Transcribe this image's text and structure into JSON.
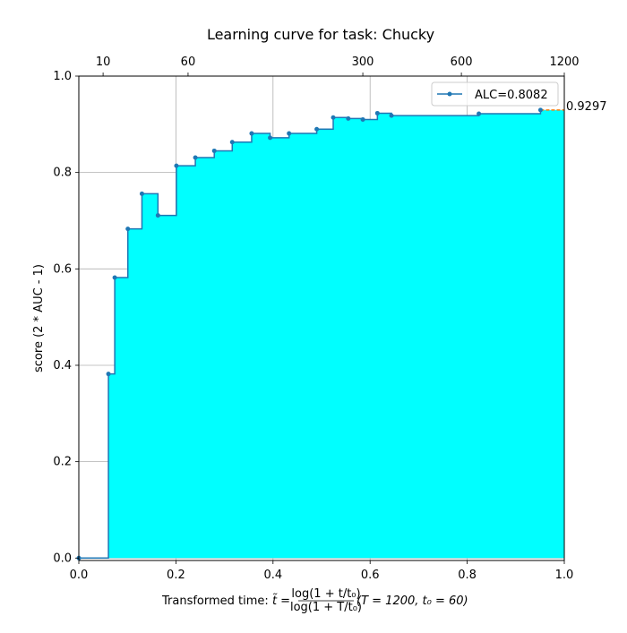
{
  "chart_data": {
    "type": "area",
    "title": "Learning curve for task: Chucky",
    "ylabel": "score (2 * AUC - 1)",
    "xlabel": {
      "prefix": "Transformed time: ",
      "tvar": "t̃",
      "eq": " = ",
      "num": "log(1 + t/t₀)",
      "den": "log(1 + T/t₀)",
      "suffix": "  (T = 1200,  t₀ = 60)"
    },
    "xlim": [
      0,
      1
    ],
    "ylim": [
      -0.005,
      1.0
    ],
    "x_ticks": [
      0.0,
      0.2,
      0.4,
      0.6,
      0.8,
      1.0
    ],
    "x_tick_labels": [
      "0.0",
      "0.2",
      "0.4",
      "0.6",
      "0.8",
      "1.0"
    ],
    "y_ticks": [
      0.0,
      0.2,
      0.4,
      0.6,
      0.8,
      1.0
    ],
    "y_tick_labels": [
      "0.0",
      "0.2",
      "0.4",
      "0.6",
      "0.8",
      "1.0"
    ],
    "top_ticks": [
      0.05,
      0.225,
      0.585,
      0.788,
      1.0
    ],
    "top_tick_labels": [
      "10",
      "60",
      "300",
      "600",
      "1200"
    ],
    "grid": true,
    "legend": {
      "placement": "top-right",
      "label": "ALC=0.8082"
    },
    "final_score_label": "0.9297",
    "fill_color": "#00ffff",
    "line_color": "#1f77b4",
    "final_line_color": "#ff7f0e",
    "series": [
      {
        "name": "ALC=0.8082",
        "x": [
          0.0,
          0.061,
          0.074,
          0.101,
          0.13,
          0.163,
          0.201,
          0.24,
          0.279,
          0.316,
          0.356,
          0.394,
          0.433,
          0.49,
          0.524,
          0.555,
          0.585,
          0.615,
          0.644,
          0.824,
          0.951
        ],
        "y": [
          0.0,
          0.382,
          0.582,
          0.683,
          0.756,
          0.711,
          0.814,
          0.831,
          0.845,
          0.863,
          0.881,
          0.872,
          0.881,
          0.89,
          0.914,
          0.912,
          0.91,
          0.923,
          0.918,
          0.922,
          0.9297
        ]
      }
    ]
  }
}
